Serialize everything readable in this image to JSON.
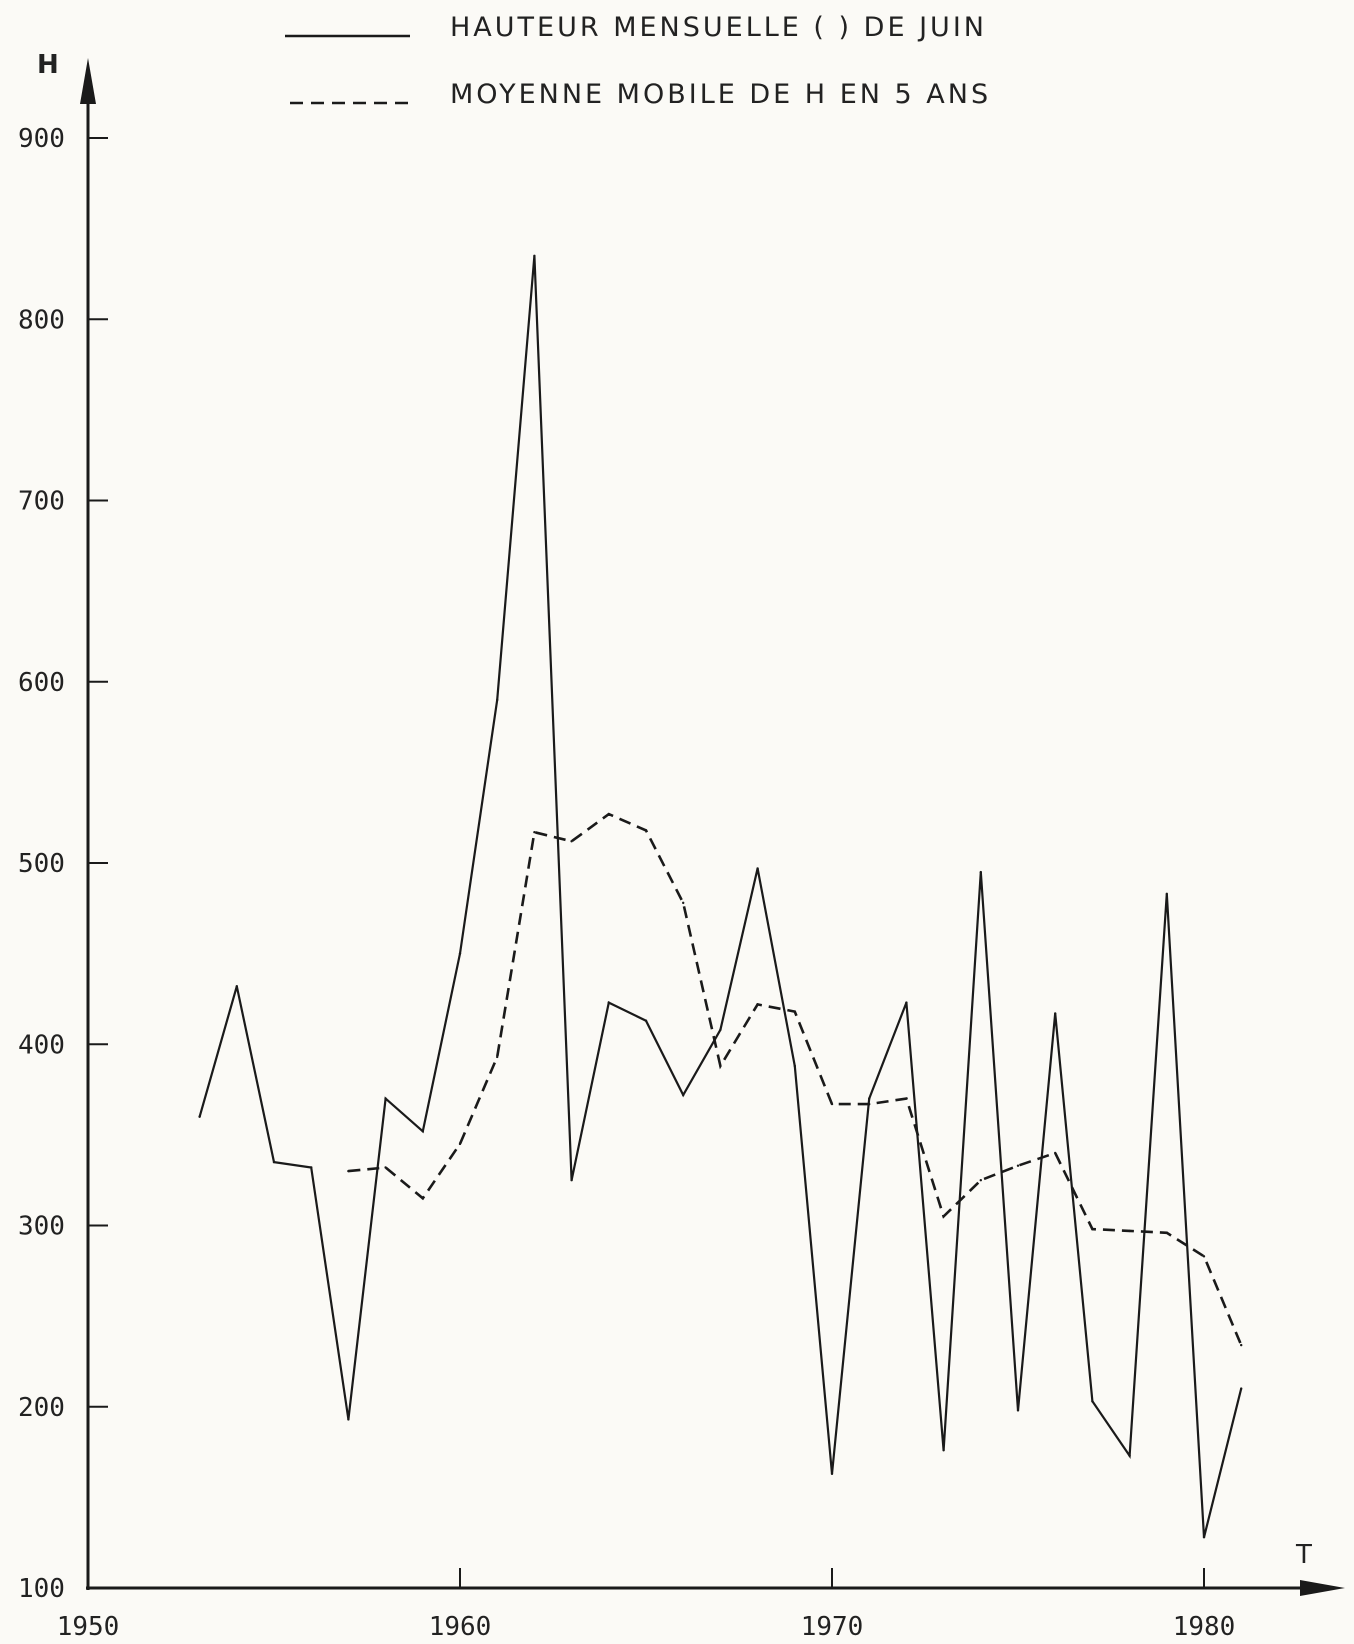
{
  "chart_data": {
    "type": "line",
    "ylabel": "H",
    "xlabel": "T",
    "xlim": [
      1950,
      1983
    ],
    "ylim": [
      100,
      900
    ],
    "x_ticks": [
      "1950",
      "1960",
      "1970",
      "1980"
    ],
    "y_ticks": [
      "900",
      "800",
      "700",
      "600",
      "500",
      "400",
      "300",
      "200",
      "100"
    ],
    "grid": false,
    "legend_position": "top",
    "series": [
      {
        "name": "HAUTEUR MENSUELLE ( ) DE JUIN",
        "style": "solid",
        "x": [
          1953,
          1954,
          1955,
          1956,
          1957,
          1958,
          1959,
          1960,
          1961,
          1962,
          1963,
          1964,
          1965,
          1966,
          1967,
          1968,
          1969,
          1970,
          1971,
          1972,
          1973,
          1974,
          1975,
          1976,
          1977,
          1978,
          1979,
          1980,
          1981
        ],
        "values": [
          360,
          432,
          335,
          332,
          193,
          370,
          352,
          450,
          590,
          835,
          325,
          423,
          413,
          372,
          408,
          497,
          388,
          163,
          370,
          423,
          176,
          495,
          198,
          417,
          203,
          173,
          483,
          128,
          210
        ]
      },
      {
        "name": "MOYENNE MOBILE DE H EN 5 ANS",
        "style": "dashed",
        "x": [
          1957,
          1958,
          1959,
          1960,
          1961,
          1962,
          1963,
          1964,
          1965,
          1966,
          1967,
          1968,
          1969,
          1970,
          1971,
          1972,
          1973,
          1974,
          1975,
          1976,
          1977,
          1978,
          1979,
          1980,
          1981
        ],
        "values": [
          330,
          332,
          315,
          345,
          393,
          517,
          512,
          527,
          518,
          478,
          388,
          422,
          418,
          367,
          367,
          370,
          305,
          325,
          333,
          340,
          298,
          297,
          296,
          283,
          234
        ]
      }
    ]
  }
}
